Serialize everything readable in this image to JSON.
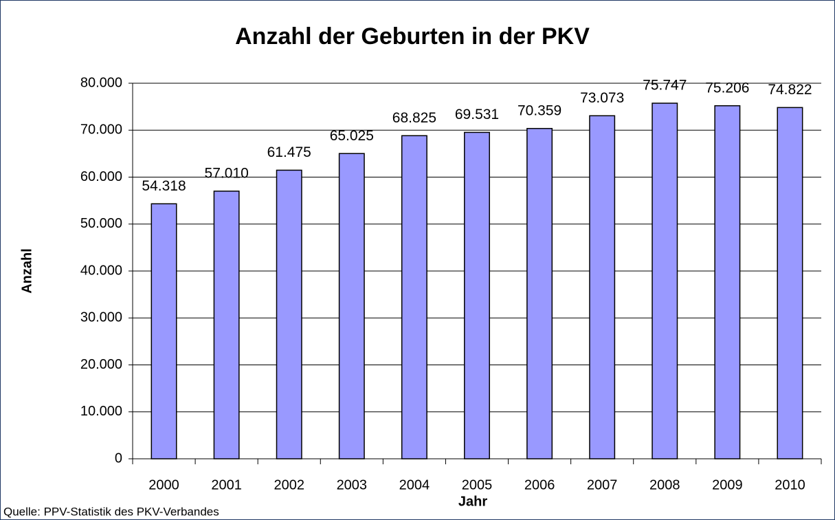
{
  "chart_data": {
    "type": "bar",
    "title": "Anzahl der Geburten in der PKV",
    "x_label": "Jahr",
    "y_label": "Anzahl",
    "source": "Quelle: PPV-Statistik des PKV-Verbandes",
    "categories": [
      "2000",
      "2001",
      "2002",
      "2003",
      "2004",
      "2005",
      "2006",
      "2007",
      "2008",
      "2009",
      "2010"
    ],
    "values": [
      54318,
      57010,
      61475,
      65025,
      68825,
      69531,
      70359,
      73073,
      75747,
      75206,
      74822
    ],
    "value_labels": [
      "54.318",
      "57.010",
      "61.475",
      "65.025",
      "68.825",
      "69.531",
      "70.359",
      "73.073",
      "75.747",
      "75.206",
      "74.822"
    ],
    "color": "#9999ff",
    "ylim": [
      0,
      80000
    ],
    "yticks": [
      0,
      {
        "value": 10000,
        "label": "10.000"
      },
      {
        "value": 20000,
        "label": "20.000"
      },
      {
        "value": 30000,
        "label": "30.000"
      },
      {
        "value": 40000,
        "label": "40.000"
      },
      {
        "value": 50000,
        "label": "50.000"
      },
      {
        "value": 60000,
        "label": "60.000"
      },
      {
        "value": 70000,
        "label": "70.000"
      },
      {
        "value": 80000,
        "label": "80.000"
      }
    ],
    "grid": true
  }
}
